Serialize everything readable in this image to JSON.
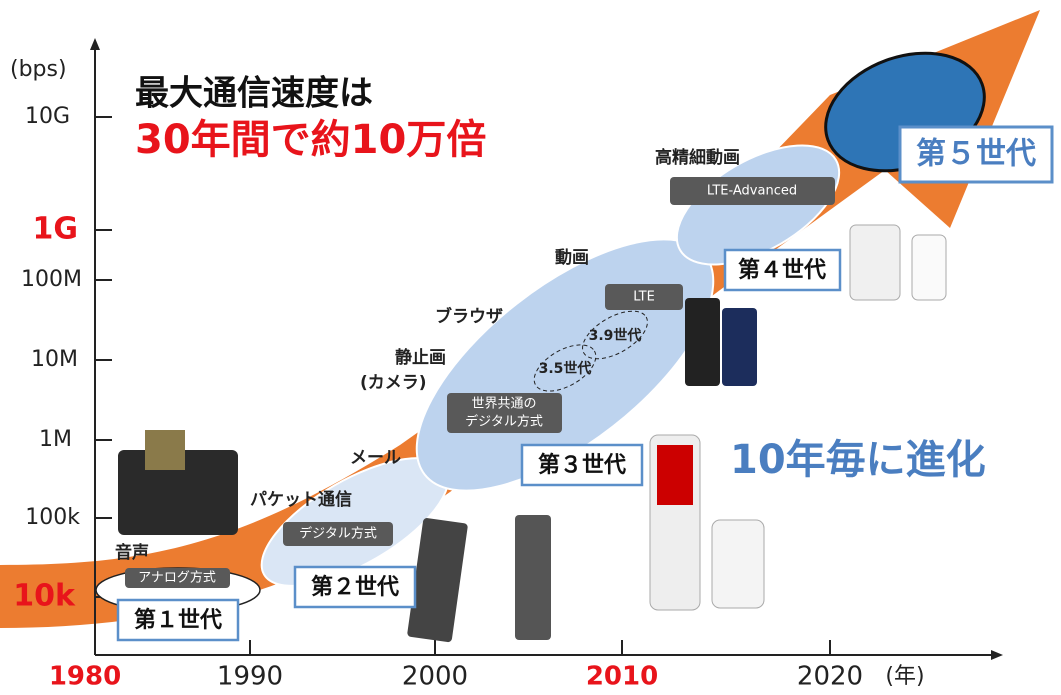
{
  "axis": {
    "y_unit": "(bps)",
    "y_labels": [
      "10G",
      "1G",
      "100M",
      "10M",
      "1M",
      "100k",
      "10k"
    ],
    "x_labels": [
      "1980",
      "1990",
      "2000",
      "2010",
      "2020"
    ],
    "x_unit": "(年)"
  },
  "headline": {
    "line1": "最大通信速度は",
    "line2": "30年間で約10万倍"
  },
  "side_note": "10年毎に進化",
  "generations": [
    {
      "label": "第１世代",
      "service": "音声",
      "tech": "アナログ方式"
    },
    {
      "label": "第２世代",
      "service": "パケット通信",
      "tech": "デジタル方式",
      "extra": "メール"
    },
    {
      "label": "第３世代",
      "services": [
        "静止画",
        "(カメラ)",
        "ブラウザ",
        "動画"
      ],
      "tech": [
        "世界共通の",
        "デジタル方式"
      ],
      "sub": [
        "3.5世代",
        "3.9世代"
      ],
      "lte": "LTE"
    },
    {
      "label": "第４世代",
      "service": "高精細動画",
      "tech": "LTE-Advanced"
    },
    {
      "label": "第５世代"
    }
  ]
}
